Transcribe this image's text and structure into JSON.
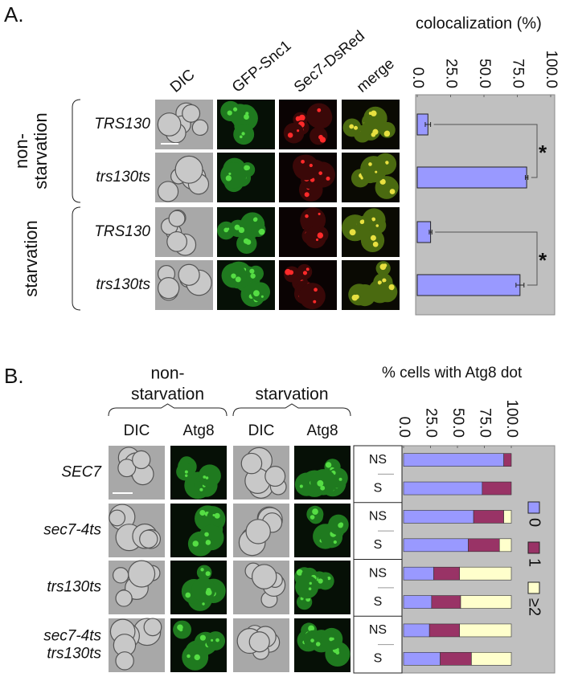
{
  "panel_a": {
    "label": "A.",
    "columns": [
      "DIC",
      "GFP-Snc1",
      "Sec7-DsRed",
      "merge"
    ],
    "groups": [
      [
        "non-",
        "starvation"
      ],
      [
        "starvation"
      ]
    ],
    "significance": [
      "*",
      "*"
    ]
  },
  "panel_b": {
    "label": "B.",
    "groups": [
      [
        "non-",
        "starvation"
      ],
      [
        "starvation"
      ]
    ],
    "columns": [
      "DIC",
      "Atg8",
      "DIC",
      "Atg8"
    ],
    "rows": [
      [
        "SEC7"
      ],
      [
        "sec7-4ts"
      ],
      [
        "trs130ts"
      ],
      [
        "sec7-4ts",
        "trs130ts"
      ]
    ]
  },
  "chart_data": [
    {
      "type": "bar",
      "orientation": "horizontal",
      "title": "colocalization (%)",
      "categories": [
        "TRS130",
        "trs130ts",
        "TRS130",
        "trs130ts"
      ],
      "values": [
        8,
        82,
        10,
        77
      ],
      "errors": [
        2,
        1,
        1,
        3
      ],
      "color": "#9999ff",
      "xlim": [
        0,
        100
      ],
      "xticks": [
        {
          "value": 0,
          "label": "0.0"
        },
        {
          "value": 25,
          "label": "25.0"
        },
        {
          "value": 50,
          "label": "50.0"
        },
        {
          "value": 75,
          "label": "75.0"
        },
        {
          "value": 100,
          "label": "100.0"
        }
      ]
    },
    {
      "type": "stacked_bar",
      "orientation": "horizontal",
      "title": "% cells with Atg8 dot",
      "categories": [
        "NS",
        "S",
        "NS",
        "S",
        "NS",
        "S",
        "NS",
        "S"
      ],
      "series": [
        {
          "name": "0",
          "color": "#9999ff",
          "values": [
            93,
            73,
            65,
            60,
            28,
            26,
            24,
            34
          ]
        },
        {
          "name": "1",
          "color": "#993366",
          "values": [
            7,
            27,
            28,
            29,
            24,
            27,
            28,
            29
          ]
        },
        {
          "name": "≥2",
          "color": "#ffffcc",
          "values": [
            0,
            0,
            7,
            11,
            48,
            47,
            48,
            37
          ]
        }
      ],
      "xlim": [
        0,
        100
      ],
      "xticks": [
        {
          "value": 0,
          "label": "0.0"
        },
        {
          "value": 25,
          "label": "25.0"
        },
        {
          "value": 50,
          "label": "50.0"
        },
        {
          "value": 75,
          "label": "75.0"
        },
        {
          "value": 100,
          "label": "100.0"
        }
      ]
    }
  ]
}
